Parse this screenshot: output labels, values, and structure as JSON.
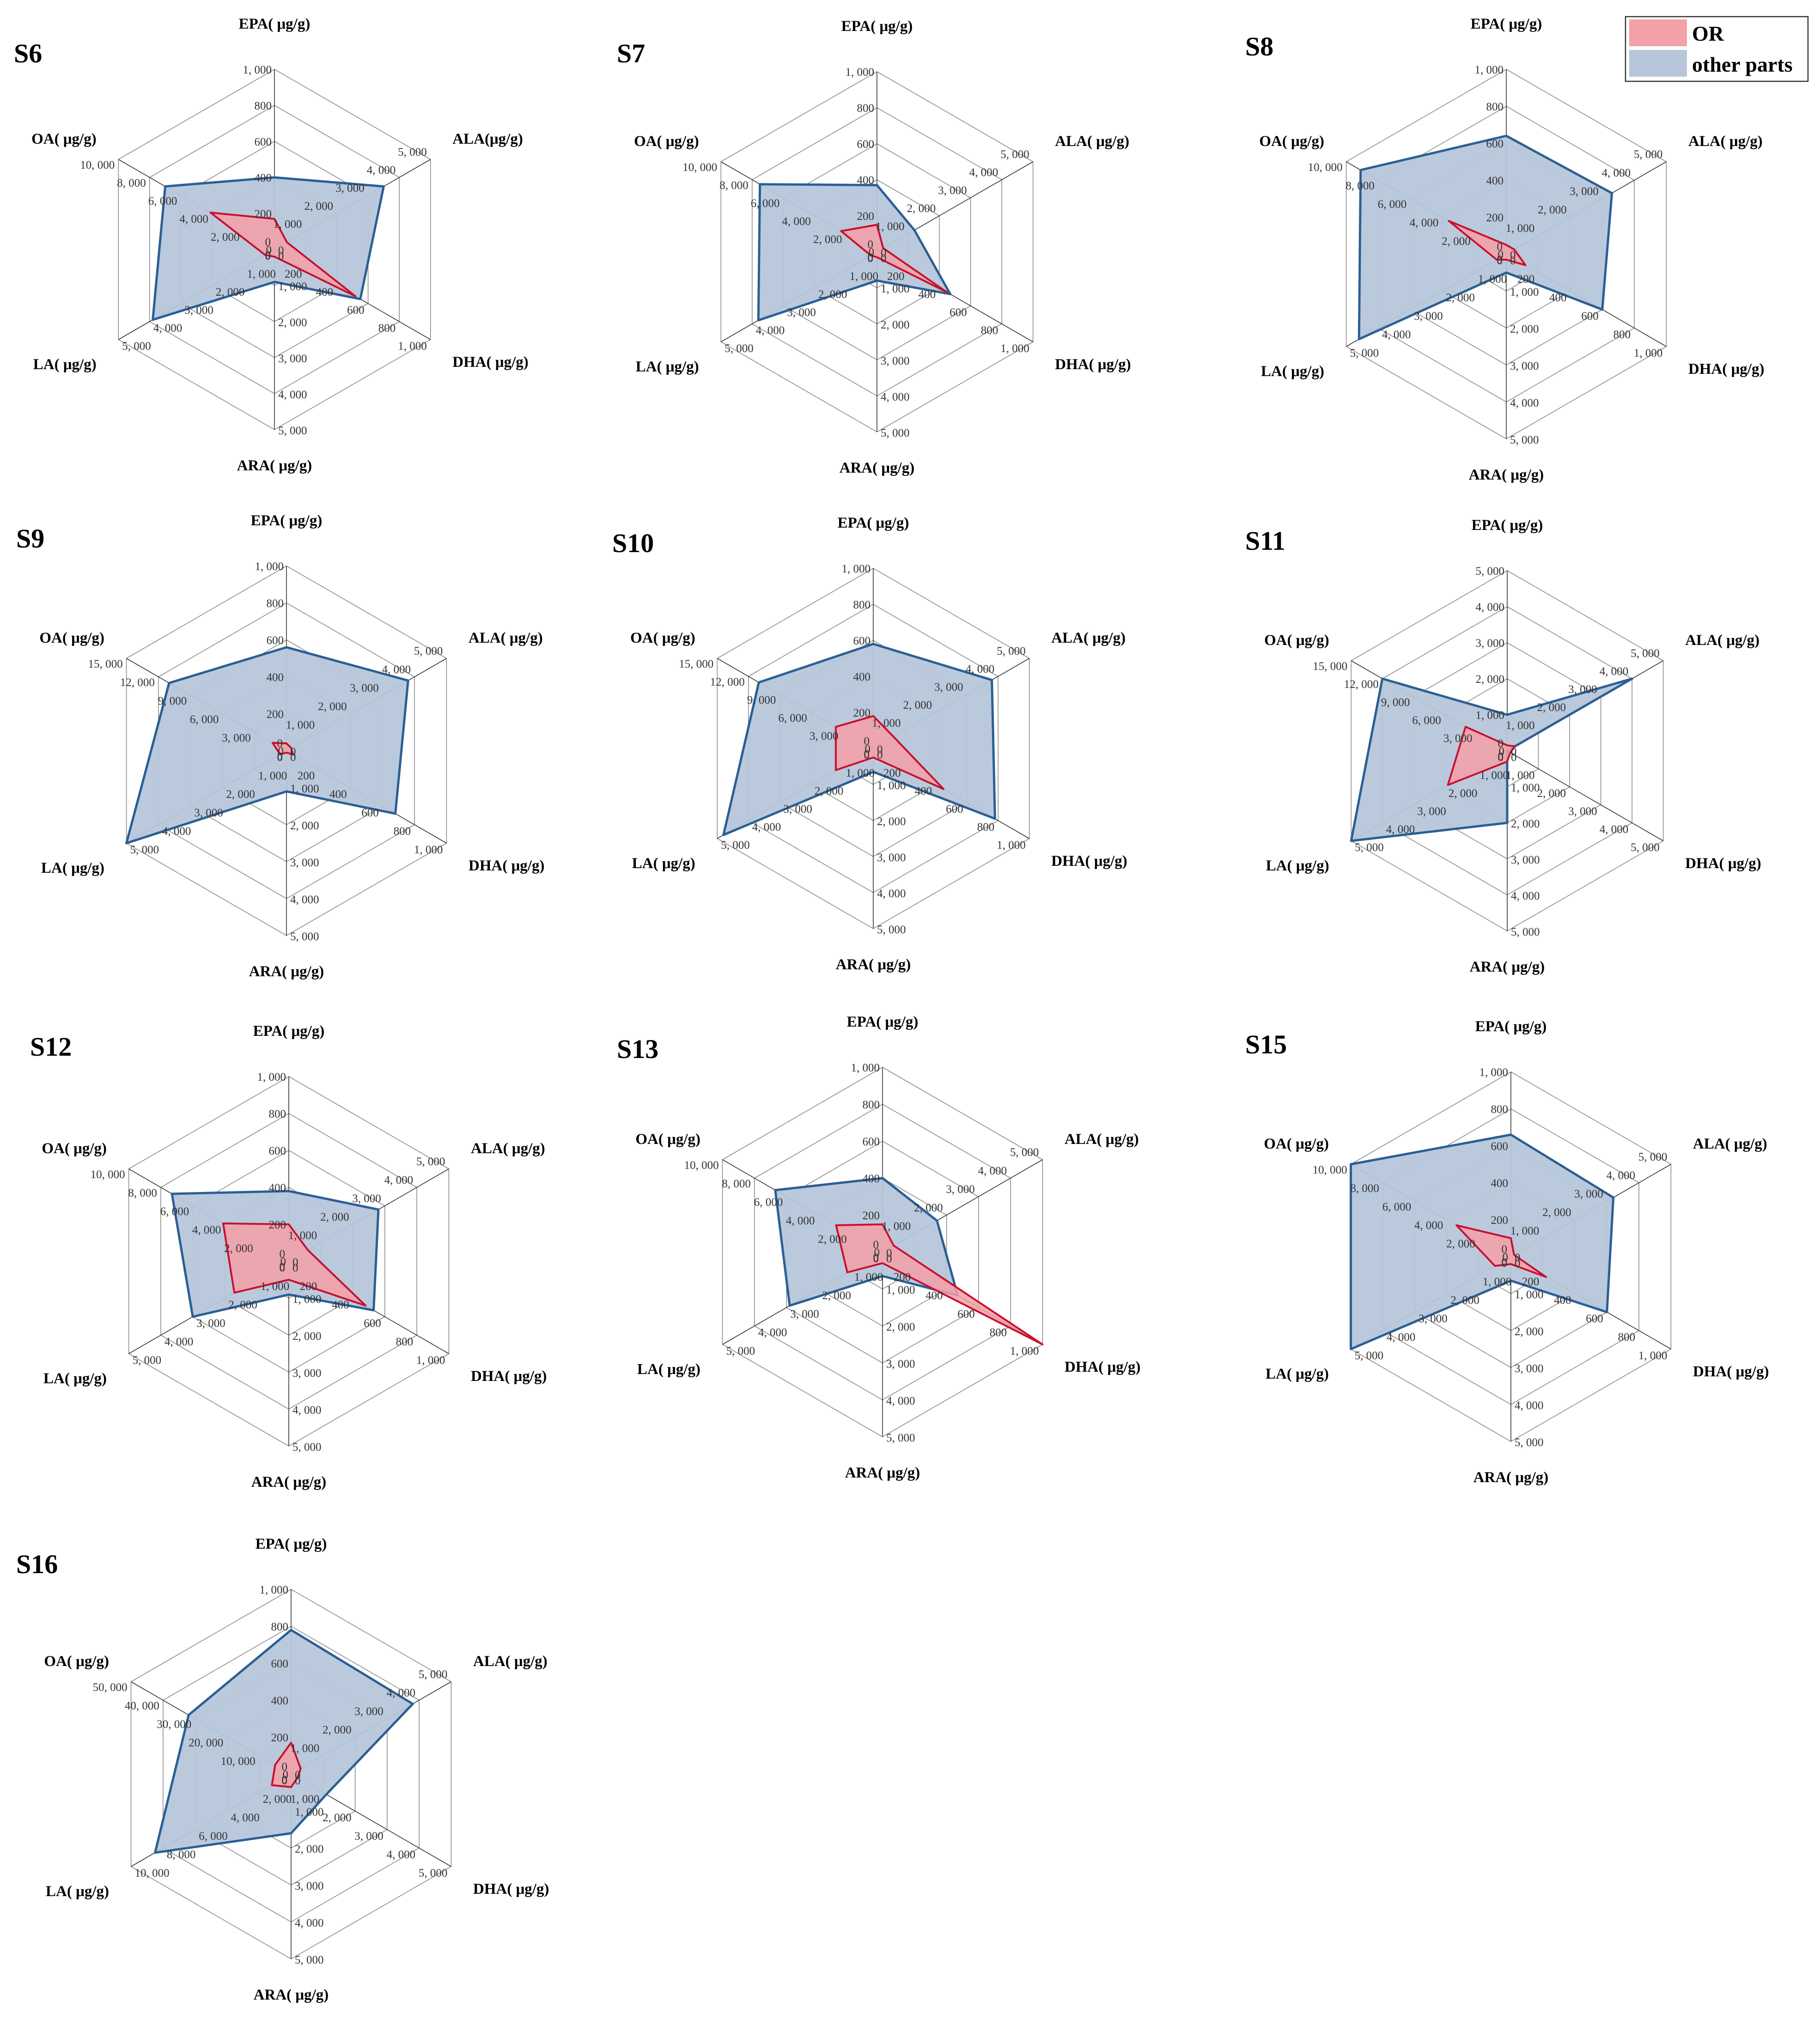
{
  "colors": {
    "or_fill": "#f4a0a8",
    "or_stroke": "#c8102e",
    "other_fill": "#b7c6db",
    "other_stroke": "#2b5f94",
    "grid": "#8c8c8c",
    "axis": "#333333"
  },
  "legend": {
    "items": [
      {
        "label": "OR",
        "color": "#f4a0a8"
      },
      {
        "label": "other parts",
        "color": "#b7c6db"
      }
    ]
  },
  "chart_data": [
    {
      "type": "radar",
      "title": "S6",
      "axes": [
        "EPA(  μg/g)",
        "ALA(μg/g)",
        "DHA(  μg/g)",
        "ARA(  μg/g)",
        "LA(  μg/g)",
        "OA(  μg/g)"
      ],
      "axis_max": [
        1000,
        5000,
        1000,
        5000,
        5000,
        10000
      ],
      "ticks": [
        [
          "0",
          "200",
          "400",
          "600",
          "800",
          "1, 000"
        ],
        [
          "0",
          "1, 000",
          "2, 000",
          "3, 000",
          "4, 000",
          "5, 000"
        ],
        [
          "0",
          "200",
          "400",
          "600",
          "800",
          "1, 000"
        ],
        [
          "0",
          "1, 000",
          "2, 000",
          "3, 000",
          "4, 000",
          "5, 000"
        ],
        [
          "0",
          "1, 000",
          "2, 000",
          "3, 000",
          "4, 000",
          "5, 000"
        ],
        [
          "0",
          "2, 000",
          "4, 000",
          "6, 000",
          "8, 000",
          "10, 000"
        ]
      ],
      "series": [
        {
          "name": "other parts",
          "values": [
            400,
            3500,
            550,
            900,
            3900,
            7000
          ]
        },
        {
          "name": "OR",
          "values": [
            170,
            400,
            520,
            200,
            300,
            4100
          ]
        }
      ]
    },
    {
      "type": "radar",
      "title": "S7",
      "axes": [
        "EPA(  μg/g)",
        "ALA(  μg/g)",
        "DHA(  μg/g)",
        "ARA(  μg/g)",
        "LA(  μg/g)",
        "OA(  μg/g)"
      ],
      "axis_max": [
        1000,
        5000,
        1000,
        5000,
        5000,
        10000
      ],
      "ticks": [
        [
          "0",
          "200",
          "400",
          "600",
          "800",
          "1, 000"
        ],
        [
          "0",
          "1, 000",
          "2, 000",
          "3, 000",
          "4, 000",
          "5, 000"
        ],
        [
          "0",
          "200",
          "400",
          "600",
          "800",
          "1, 000"
        ],
        [
          "0",
          "1, 000",
          "2, 000",
          "3, 000",
          "4, 000",
          "5, 000"
        ],
        [
          "0",
          "1, 000",
          "2, 000",
          "3, 000",
          "4, 000",
          "5, 000"
        ],
        [
          "0",
          "2, 000",
          "4, 000",
          "6, 000",
          "8, 000",
          "10, 000"
        ]
      ],
      "series": [
        {
          "name": "other parts",
          "values": [
            370,
            1200,
            470,
            800,
            3800,
            7500
          ]
        },
        {
          "name": "OR",
          "values": [
            150,
            200,
            450,
            150,
            200,
            2300
          ]
        }
      ]
    },
    {
      "type": "radar",
      "title": "S8",
      "axes": [
        "EPA(  μg/g)",
        "ALA(  μg/g)",
        "DHA(  μg/g)",
        "ARA(  μg/g)",
        "LA(  μg/g)",
        "OA(  μg/g)"
      ],
      "axis_max": [
        1000,
        5000,
        1000,
        5000,
        5000,
        10000
      ],
      "ticks": [
        [
          "0",
          "200",
          "400",
          "600",
          "800",
          "1, 000"
        ],
        [
          "0",
          "1, 000",
          "2, 000",
          "3, 000",
          "4, 000",
          "5, 000"
        ],
        [
          "0",
          "200",
          "400",
          "600",
          "800",
          "1, 000"
        ],
        [
          "0",
          "1, 000",
          "2, 000",
          "3, 000",
          "4, 000",
          "5, 000"
        ],
        [
          "0",
          "1, 000",
          "2, 000",
          "3, 000",
          "4, 000",
          "5, 000"
        ],
        [
          "0",
          "2, 000",
          "4, 000",
          "6, 000",
          "8, 000",
          "10, 000"
        ]
      ],
      "series": [
        {
          "name": "other parts",
          "values": [
            640,
            3300,
            600,
            500,
            4600,
            9100
          ]
        },
        {
          "name": "OR",
          "values": [
            50,
            250,
            120,
            150,
            300,
            3600
          ]
        }
      ]
    },
    {
      "type": "radar",
      "title": "S9",
      "axes": [
        "EPA(  μg/g)",
        "ALA(  μg/g)",
        "DHA(  μg/g)",
        "ARA(  μg/g)",
        "LA(  μg/g)",
        "OA(  μg/g)"
      ],
      "axis_max": [
        1000,
        5000,
        1000,
        5000,
        5000,
        15000
      ],
      "ticks": [
        [
          "0",
          "200",
          "400",
          "600",
          "800",
          "1, 000"
        ],
        [
          "0",
          "1, 000",
          "2, 000",
          "3, 000",
          "4, 000",
          "5, 000"
        ],
        [
          "0",
          "200",
          "400",
          "600",
          "800",
          "1, 000"
        ],
        [
          "0",
          "1, 000",
          "2, 000",
          "3, 000",
          "4, 000",
          "5, 000"
        ],
        [
          "0",
          "1, 000",
          "2, 000",
          "3, 000",
          "4, 000",
          "5, 000"
        ],
        [
          "0",
          "3, 000",
          "6, 000",
          "9, 000",
          "12, 000",
          "15, 000"
        ]
      ],
      "series": [
        {
          "name": "other parts",
          "values": [
            560,
            3800,
            680,
            1100,
            5000,
            11000
          ]
        },
        {
          "name": "OR",
          "values": [
            40,
            150,
            40,
            50,
            200,
            1300
          ]
        }
      ]
    },
    {
      "type": "radar",
      "title": "S10",
      "axes": [
        "EPA(  μg/g)",
        "ALA(  μg/g)",
        "DHA(  μg/g)",
        "ARA(  μg/g)",
        "LA(  μg/g)",
        "OA(  μg/g)"
      ],
      "axis_max": [
        1000,
        5000,
        1000,
        5000,
        5000,
        15000
      ],
      "ticks": [
        [
          "0",
          "200",
          "400",
          "600",
          "800",
          "1, 000"
        ],
        [
          "0",
          "1, 000",
          "2, 000",
          "3, 000",
          "4, 000",
          "5, 000"
        ],
        [
          "0",
          "200",
          "400",
          "600",
          "800",
          "1, 000"
        ],
        [
          "0",
          "1, 000",
          "2, 000",
          "3, 000",
          "4, 000",
          "5, 000"
        ],
        [
          "0",
          "1, 000",
          "2, 000",
          "3, 000",
          "4, 000",
          "5, 000"
        ],
        [
          "0",
          "3, 000",
          "6, 000",
          "9, 000",
          "12, 000",
          "15, 000"
        ]
      ],
      "series": [
        {
          "name": "other parts",
          "values": [
            580,
            3800,
            780,
            650,
            4800,
            11000
          ]
        },
        {
          "name": "OR",
          "values": [
            180,
            650,
            450,
            250,
            1200,
            3600
          ]
        }
      ]
    },
    {
      "type": "radar",
      "title": "S11",
      "axes": [
        "EPA(  μg/g)",
        "ALA(  μg/g)",
        "DHA(  μg/g)",
        "ARA(  μg/g)",
        "LA(  μg/g)",
        "OA(  μg/g)"
      ],
      "axis_max": [
        5000,
        5000,
        5000,
        5000,
        5000,
        15000
      ],
      "ticks": [
        [
          "0",
          "1, 000",
          "2, 000",
          "3, 000",
          "4, 000",
          "5, 000"
        ],
        [
          "0",
          "1, 000",
          "2, 000",
          "3, 000",
          "4, 000",
          "5, 000"
        ],
        [
          "0",
          "1, 000",
          "2, 000",
          "3, 000",
          "4, 000",
          "5, 000"
        ],
        [
          "0",
          "1, 000",
          "2, 000",
          "3, 000",
          "4, 000",
          "5, 000"
        ],
        [
          "0",
          "1, 000",
          "2, 000",
          "3, 000",
          "4, 000",
          "5, 000"
        ],
        [
          "0",
          "3, 000",
          "6, 000",
          "9, 000",
          "12, 000",
          "15, 000"
        ]
      ],
      "series": [
        {
          "name": "other parts",
          "values": [
            1000,
            4000,
            0,
            2000,
            5000,
            12000
          ]
        },
        {
          "name": "OR",
          "values": [
            150,
            250,
            100,
            300,
            1900,
            4000
          ]
        }
      ]
    },
    {
      "type": "radar",
      "title": "S12",
      "axes": [
        "EPA(  μg/g)",
        "ALA(  μg/g)",
        "DHA(  μg/g)",
        "ARA(  μg/g)",
        "LA(  μg/g)",
        "OA(  μg/g)"
      ],
      "axis_max": [
        1000,
        5000,
        1000,
        5000,
        5000,
        10000
      ],
      "ticks": [
        [
          "0",
          "200",
          "400",
          "600",
          "800",
          "1, 000"
        ],
        [
          "0",
          "1, 000",
          "2, 000",
          "3, 000",
          "4, 000",
          "5, 000"
        ],
        [
          "0",
          "200",
          "400",
          "600",
          "800",
          "1, 000"
        ],
        [
          "0",
          "1, 000",
          "2, 000",
          "3, 000",
          "4, 000",
          "5, 000"
        ],
        [
          "0",
          "1, 000",
          "2, 000",
          "3, 000",
          "4, 000",
          "5, 000"
        ],
        [
          "0",
          "2, 000",
          "4, 000",
          "6, 000",
          "8, 000",
          "10, 000"
        ]
      ],
      "series": [
        {
          "name": "other parts",
          "values": [
            380,
            2800,
            530,
            900,
            3000,
            7300
          ]
        },
        {
          "name": "OR",
          "values": [
            200,
            600,
            480,
            500,
            1700,
            4100
          ]
        }
      ]
    },
    {
      "type": "radar",
      "title": "S13",
      "axes": [
        "EPA(  μg/g)",
        "ALA(  μg/g)",
        "DHA(  μg/g)",
        "ARA(  μg/g)",
        "LA(  μg/g)",
        "OA(  μg/g)"
      ],
      "axis_max": [
        1000,
        5000,
        1000,
        5000,
        5000,
        10000
      ],
      "ticks": [
        [
          "0",
          "200",
          "400",
          "600",
          "800",
          "1, 000"
        ],
        [
          "0",
          "1, 000",
          "2, 000",
          "3, 000",
          "4, 000",
          "5, 000"
        ],
        [
          "0",
          "200",
          "400",
          "600",
          "800",
          "1, 000"
        ],
        [
          "0",
          "1, 000",
          "2, 000",
          "3, 000",
          "4, 000",
          "5, 000"
        ],
        [
          "0",
          "1, 000",
          "2, 000",
          "3, 000",
          "4, 000",
          "5, 000"
        ],
        [
          "0",
          "2, 000",
          "4, 000",
          "6, 000",
          "8, 000",
          "10, 000"
        ]
      ],
      "series": [
        {
          "name": "other parts",
          "values": [
            400,
            1700,
            470,
            650,
            2900,
            6700
          ]
        },
        {
          "name": "OR",
          "values": [
            150,
            350,
            1000,
            300,
            1100,
            2900
          ]
        }
      ]
    },
    {
      "type": "radar",
      "title": "S15",
      "axes": [
        "EPA(  μg/g)",
        "ALA(  μg/g)",
        "DHA(  μg/g)",
        "ARA(  μg/g)",
        "LA(  μg/g)",
        "OA(  μg/g)"
      ],
      "axis_max": [
        1000,
        5000,
        1000,
        5000,
        5000,
        10000
      ],
      "ticks": [
        [
          "0",
          "200",
          "400",
          "600",
          "800",
          "1, 000"
        ],
        [
          "0",
          "1, 000",
          "2, 000",
          "3, 000",
          "4, 000",
          "5, 000"
        ],
        [
          "0",
          "200",
          "400",
          "600",
          "800",
          "1, 000"
        ],
        [
          "0",
          "1, 000",
          "2, 000",
          "3, 000",
          "4, 000",
          "5, 000"
        ],
        [
          "0",
          "1, 000",
          "2, 000",
          "3, 000",
          "4, 000",
          "5, 000"
        ],
        [
          "0",
          "2, 000",
          "4, 000",
          "6, 000",
          "8, 000",
          "10, 000"
        ]
      ],
      "series": [
        {
          "name": "other parts",
          "values": [
            660,
            3200,
            600,
            650,
            5000,
            10000
          ]
        },
        {
          "name": "OR",
          "values": [
            100,
            100,
            220,
            200,
            500,
            3400
          ]
        }
      ]
    },
    {
      "type": "radar",
      "title": "S16",
      "axes": [
        "EPA(  μg/g)",
        "ALA(  μg/g)",
        "DHA(  μg/g)",
        "ARA(  μg/g)",
        "LA(  μg/g)",
        "OA(  μg/g)"
      ],
      "axis_max": [
        1000,
        5000,
        5000,
        5000,
        10000,
        50000
      ],
      "ticks": [
        [
          "0",
          "200",
          "400",
          "600",
          "800",
          "1, 000"
        ],
        [
          "0",
          "1, 000",
          "2, 000",
          "3, 000",
          "4, 000",
          "5, 000"
        ],
        [
          "0",
          "1, 000",
          "2, 000",
          "3, 000",
          "4, 000",
          "5, 000"
        ],
        [
          "0",
          "1, 000",
          "2, 000",
          "3, 000",
          "4, 000",
          "5, 000"
        ],
        [
          "0",
          "2, 000",
          "4, 000",
          "6, 000",
          "8, 000",
          "10, 000"
        ],
        [
          "0",
          "10, 000",
          "20, 000",
          "30, 000",
          "40, 000",
          "50, 000"
        ]
      ],
      "series": [
        {
          "name": "other parts",
          "values": [
            780,
            3800,
            1100,
            1600,
            8500,
            32000
          ]
        },
        {
          "name": "OR",
          "values": [
            170,
            300,
            200,
            350,
            1200,
            5000
          ]
        }
      ]
    }
  ]
}
